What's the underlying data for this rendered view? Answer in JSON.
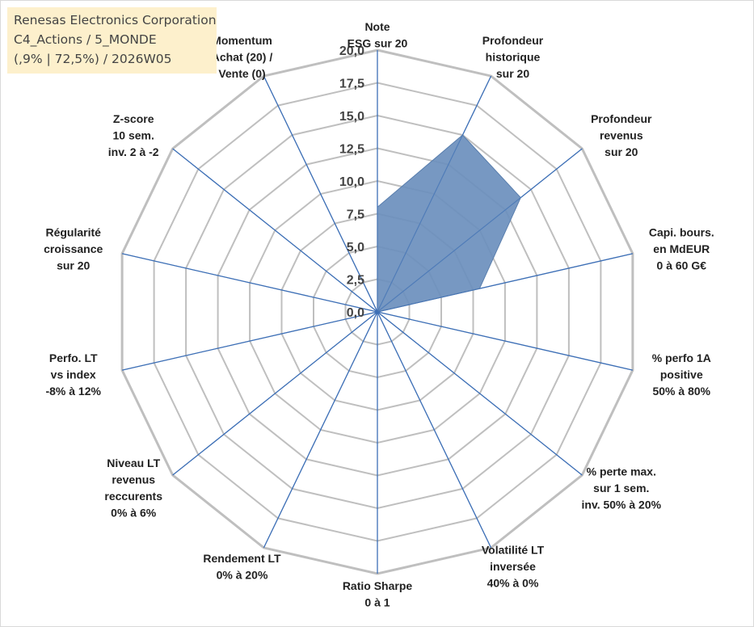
{
  "header": {
    "lines": [
      "Renesas Electronics Corporation",
      "C4_Actions / 5_MONDE",
      "(,9% | 72,5%) / 2026W05"
    ]
  },
  "chart_data": {
    "type": "radar",
    "title": "",
    "scale": {
      "min": 0,
      "max": 20,
      "step": 2.5
    },
    "ticks": [
      "0,0",
      "2,5",
      "5,0",
      "7,5",
      "10,0",
      "12,5",
      "15,0",
      "17,5",
      "20,0"
    ],
    "axes": [
      {
        "label": [
          "Note",
          "ESG sur 20"
        ]
      },
      {
        "label": [
          "Profondeur",
          "historique",
          "sur 20"
        ]
      },
      {
        "label": [
          "Profondeur",
          "revenus",
          "sur 20"
        ]
      },
      {
        "label": [
          "Capi. bours.",
          "en MdEUR",
          "0 à 60 G€"
        ]
      },
      {
        "label": [
          "% perfo 1A",
          "positive",
          "50% à 80%"
        ]
      },
      {
        "label": [
          "% perte max.",
          "sur 1 sem.",
          "inv. 50% à 20%"
        ]
      },
      {
        "label": [
          "Volatilité LT",
          "inversée",
          "40% à 0%"
        ]
      },
      {
        "label": [
          "Ratio Sharpe",
          "0 à 1"
        ]
      },
      {
        "label": [
          "Rendement LT",
          "0% à 20%"
        ]
      },
      {
        "label": [
          "Niveau LT",
          "revenus",
          "reccurents",
          "0% à 6%"
        ]
      },
      {
        "label": [
          "Perfo. LT",
          "vs index",
          "-8% à 12%"
        ]
      },
      {
        "label": [
          "Régularité",
          "croissance",
          "sur 20"
        ]
      },
      {
        "label": [
          "Z-score",
          "10 sem.",
          "inv. 2 à -2"
        ]
      },
      {
        "label": [
          "Momentum",
          "Achat (20) /",
          "Vente (0)"
        ]
      }
    ],
    "series": [
      {
        "values": [
          8,
          15,
          14,
          8,
          0,
          0,
          0,
          0,
          0,
          0,
          0,
          0,
          0,
          0
        ]
      }
    ],
    "colors": {
      "fill": "#6b8fbd",
      "stroke": "#5a7fae",
      "grid": "#bfbfbf",
      "spoke": "#3d6fb6",
      "outer": "#bfbfbf"
    }
  }
}
